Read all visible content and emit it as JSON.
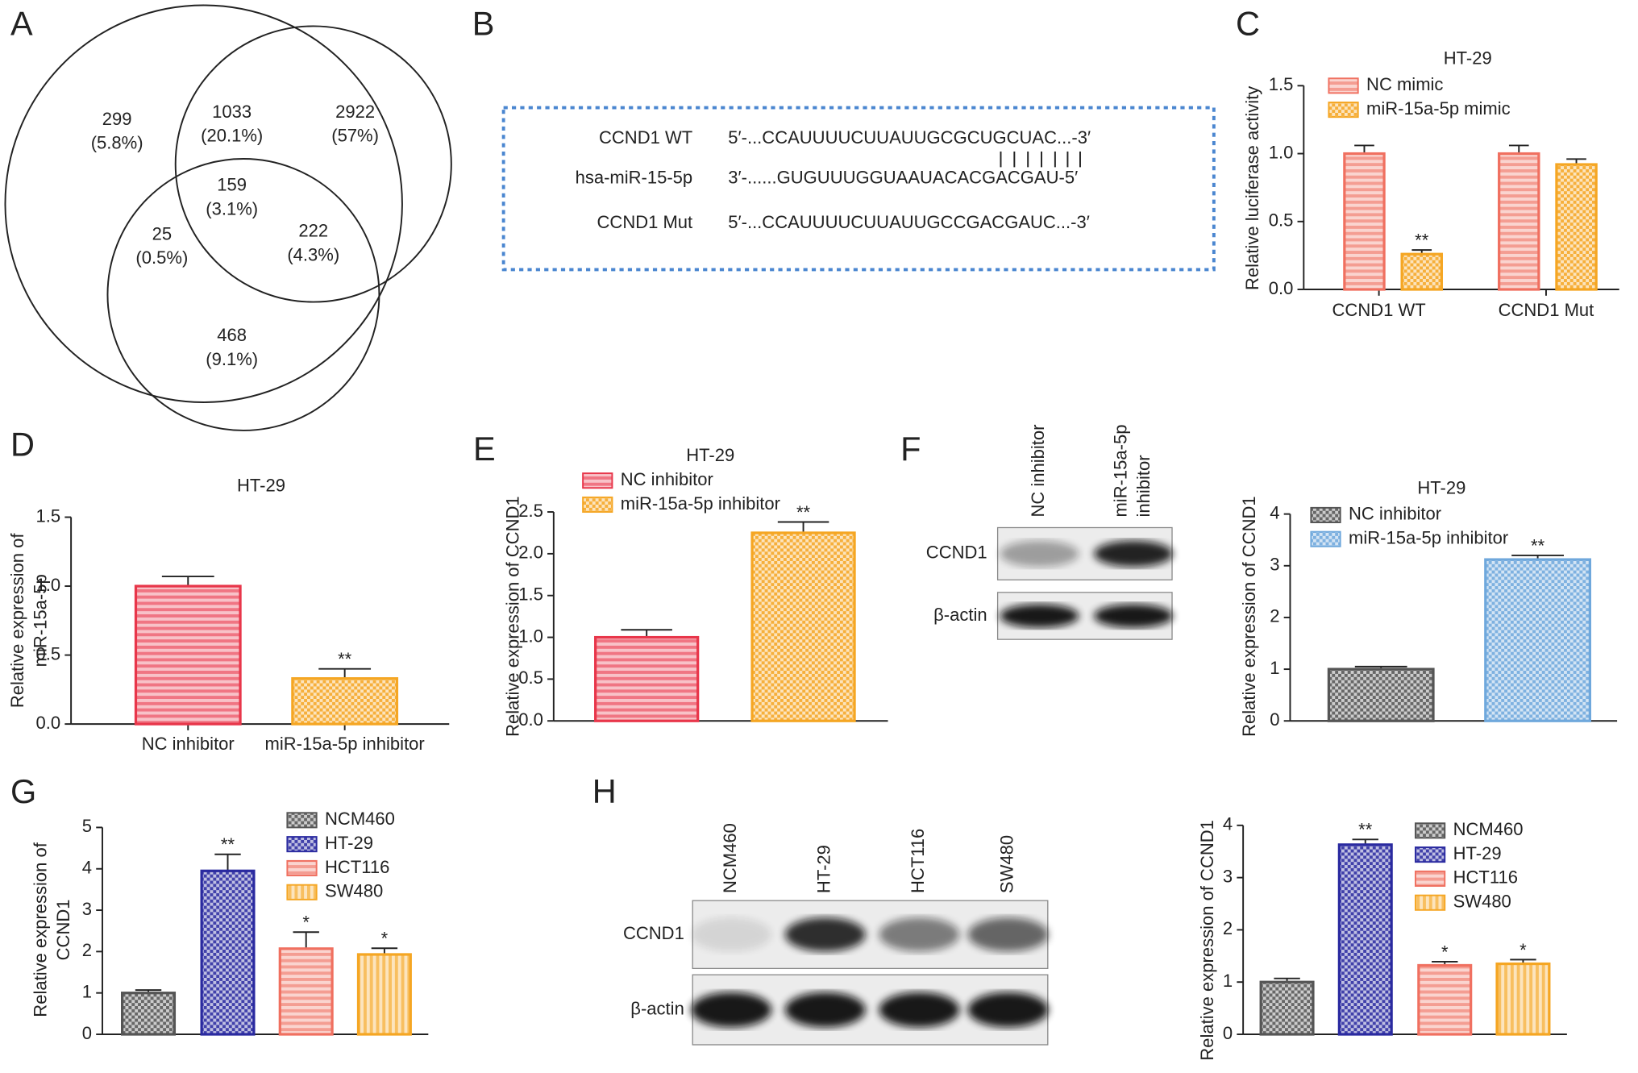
{
  "panel_labels": [
    "A",
    "B",
    "C",
    "D",
    "E",
    "F",
    "G",
    "H"
  ],
  "venn": {
    "regions": [
      {
        "count": 299,
        "percent": "(5.8%)"
      },
      {
        "count": 1033,
        "percent": "(20.1%)"
      },
      {
        "count": 2922,
        "percent": "(57%)"
      },
      {
        "count": 159,
        "percent": "(3.1%)"
      },
      {
        "count": 25,
        "percent": "(0.5%)"
      },
      {
        "count": 222,
        "percent": "(4.3%)"
      },
      {
        "count": 468,
        "percent": "(9.1%)"
      }
    ]
  },
  "sequence": {
    "rows": [
      {
        "name": "CCND1 WT",
        "seq": "5′-...CCAUUUUCUUAUUGCGCUGCUAC...-3′"
      },
      {
        "name": "hsa-miR-15-5p",
        "seq": "3′-......GUGUUUGGUAAUACACGACGAU-5′"
      },
      {
        "name": "CCND1 Mut",
        "seq": "5′-...CCAUUUUCUUAUUGCCGACGAUC...-3′"
      }
    ]
  },
  "blots": [
    {
      "lanes": [
        "NC inhibitor",
        [
          "miR-15a-5p",
          "inhibitor"
        ]
      ],
      "rows": [
        "CCND1",
        "β-actin"
      ]
    },
    {
      "lanes": [
        "NCM460",
        "HT-29",
        "HCT116",
        "SW480"
      ],
      "rows": [
        "CCND1",
        "β-actin"
      ]
    }
  ],
  "chart_data": [
    {
      "type": "bar",
      "title": "HT-29",
      "y_label": "Relative luciferase activity",
      "categories": [
        "CCND1 WT",
        "CCND1 Mut"
      ],
      "series": [
        {
          "name": "NC mimic",
          "color": "#f07060",
          "pattern": "hstripes",
          "values": [
            1.0,
            1.0
          ],
          "errors": [
            0.06,
            0.06
          ]
        },
        {
          "name": "miR-15a-5p mimic",
          "color": "#f5a623",
          "pattern": "checker",
          "values": [
            0.26,
            0.92
          ],
          "errors": [
            0.03,
            0.04
          ],
          "significance": [
            "**",
            null
          ]
        }
      ],
      "ylim": [
        0,
        1.5
      ],
      "yticks": [
        {
          "value": 0,
          "label": "0.0"
        },
        0.5,
        {
          "value": 1,
          "label": "1.0"
        },
        1.5
      ]
    },
    {
      "type": "bar",
      "title": "HT-29",
      "y_label": [
        "Relative expression of",
        "miR-15a-5p"
      ],
      "categories": [
        "NC inhibitor",
        "miR-15a-5p inhibitor"
      ],
      "values": [
        1.0,
        0.33
      ],
      "errors": [
        0.07,
        0.07
      ],
      "colors": [
        "#e8364a",
        "#f5a623"
      ],
      "patterns": [
        "hstripes",
        "checker"
      ],
      "significance": [
        null,
        "**"
      ],
      "ylim": [
        0,
        1.5
      ],
      "yticks": [
        {
          "value": 0,
          "label": "0.0"
        },
        0.5,
        {
          "value": 1,
          "label": "1.0"
        },
        1.5
      ]
    },
    {
      "type": "bar",
      "title": "HT-29",
      "y_label": "Relative expression of CCND1",
      "series": [
        {
          "name": "NC inhibitor",
          "color": "#e8364a",
          "pattern": "hstripes",
          "values": [
            1.0
          ],
          "errors": [
            0.09
          ]
        },
        {
          "name": "miR-15a-5p inhibitor",
          "color": "#f5a623",
          "pattern": "checker",
          "values": [
            2.25
          ],
          "errors": [
            0.13
          ],
          "significance": [
            "**"
          ]
        }
      ],
      "ylim": [
        0,
        2.5
      ],
      "yticks": [
        {
          "value": 0,
          "label": "0.0"
        },
        0.5,
        {
          "value": 1,
          "label": "1.0"
        },
        1.5,
        {
          "value": 2,
          "label": "2.0"
        },
        2.5
      ]
    },
    {
      "type": "bar",
      "title": "HT-29",
      "y_label": "Relative expression of CCND1",
      "series": [
        {
          "name": "NC inhibitor",
          "color": "#555555",
          "pattern": "checker",
          "values": [
            1.0
          ],
          "errors": [
            0.05
          ]
        },
        {
          "name": "miR-15a-5p inhibitor",
          "color": "#6fa8dc",
          "pattern": "checker",
          "values": [
            3.12
          ],
          "errors": [
            0.08
          ],
          "significance": [
            "**"
          ]
        }
      ],
      "ylim": [
        0,
        4
      ],
      "yticks": [
        0,
        1,
        2,
        3,
        4
      ]
    },
    {
      "type": "bar",
      "y_label": [
        "Relative expression of",
        "CCND1"
      ],
      "series": [
        {
          "name": "NCM460",
          "color": "#555555",
          "pattern": "checker",
          "values": [
            1.0
          ],
          "errors": [
            0.07
          ]
        },
        {
          "name": "HT-29",
          "color": "#2a2aa0",
          "pattern": "checker",
          "values": [
            3.95
          ],
          "errors": [
            0.4
          ],
          "significance": [
            "**"
          ]
        },
        {
          "name": "HCT116",
          "color": "#f07060",
          "pattern": "hstripes",
          "values": [
            2.07
          ],
          "errors": [
            0.4
          ],
          "significance": [
            "*"
          ]
        },
        {
          "name": "SW480",
          "color": "#f5a623",
          "pattern": "vstripes",
          "values": [
            1.93
          ],
          "errors": [
            0.15
          ],
          "significance": [
            "*"
          ]
        }
      ],
      "ylim": [
        0,
        5
      ],
      "yticks": [
        0,
        1,
        2,
        3,
        4,
        5
      ]
    },
    {
      "type": "bar",
      "y_label": "Relative expression of CCND1",
      "series": [
        {
          "name": "NCM460",
          "color": "#555555",
          "pattern": "checker",
          "values": [
            1.0
          ],
          "errors": [
            0.07
          ]
        },
        {
          "name": "HT-29",
          "color": "#2a2aa0",
          "pattern": "checker",
          "values": [
            3.63
          ],
          "errors": [
            0.1
          ],
          "significance": [
            "**"
          ]
        },
        {
          "name": "HCT116",
          "color": "#f07060",
          "pattern": "hstripes",
          "values": [
            1.32
          ],
          "errors": [
            0.07
          ],
          "significance": [
            "*"
          ]
        },
        {
          "name": "SW480",
          "color": "#f5a623",
          "pattern": "vstripes",
          "values": [
            1.35
          ],
          "errors": [
            0.08
          ],
          "significance": [
            "*"
          ]
        }
      ],
      "ylim": [
        0,
        4
      ],
      "yticks": [
        0,
        1,
        2,
        3,
        4
      ]
    }
  ]
}
